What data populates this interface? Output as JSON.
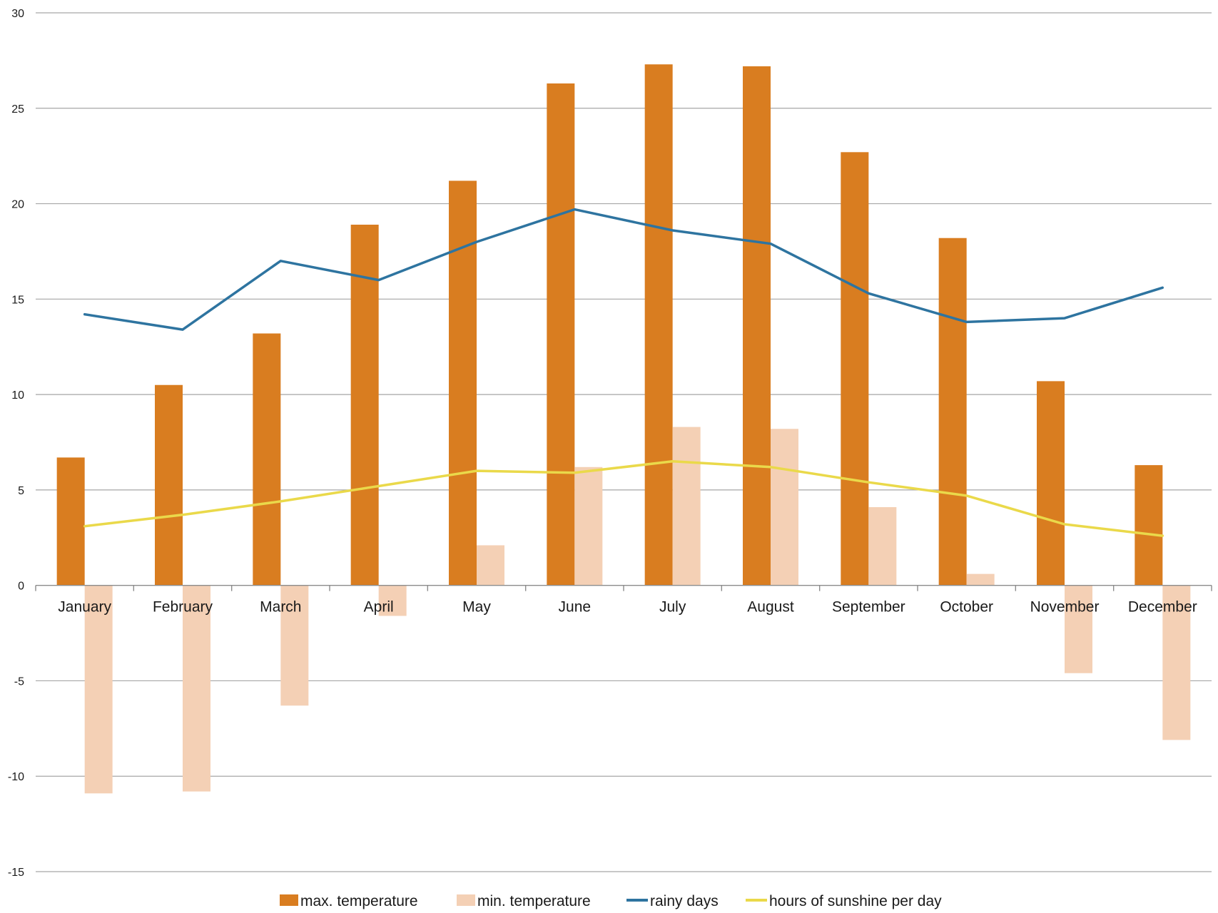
{
  "chart_data": {
    "type": "bar",
    "categories": [
      "January",
      "February",
      "March",
      "April",
      "May",
      "June",
      "July",
      "August",
      "September",
      "October",
      "November",
      "December"
    ],
    "series": [
      {
        "name": "max.  temperature",
        "kind": "bar",
        "color": "#d97d20",
        "values": [
          6.7,
          10.5,
          13.2,
          18.9,
          21.2,
          26.3,
          27.3,
          27.2,
          22.7,
          18.2,
          10.7,
          6.3
        ]
      },
      {
        "name": "min. temperature",
        "kind": "bar",
        "color": "#f4d0b5",
        "values": [
          -10.9,
          -10.8,
          -6.3,
          -1.6,
          2.1,
          6.2,
          8.3,
          8.2,
          4.1,
          0.6,
          -4.6,
          -8.1
        ]
      },
      {
        "name": "rainy days",
        "kind": "line",
        "color": "#2e74a0",
        "values": [
          14.2,
          13.4,
          17.0,
          16.0,
          18.0,
          19.7,
          18.6,
          17.9,
          15.3,
          13.8,
          14.0,
          15.6
        ]
      },
      {
        "name": "hours of sunshine per day",
        "kind": "line",
        "color": "#ead94a",
        "values": [
          3.1,
          3.7,
          4.4,
          5.2,
          6.0,
          5.9,
          6.5,
          6.2,
          5.4,
          4.7,
          3.2,
          2.6
        ]
      }
    ],
    "yticks": [
      30,
      25,
      20,
      15,
      10,
      5,
      0,
      -5,
      -10,
      -15
    ],
    "ylim": [
      -15,
      30
    ],
    "grid": true,
    "legend": "bottom",
    "title": "",
    "xlabel": "",
    "ylabel": ""
  }
}
